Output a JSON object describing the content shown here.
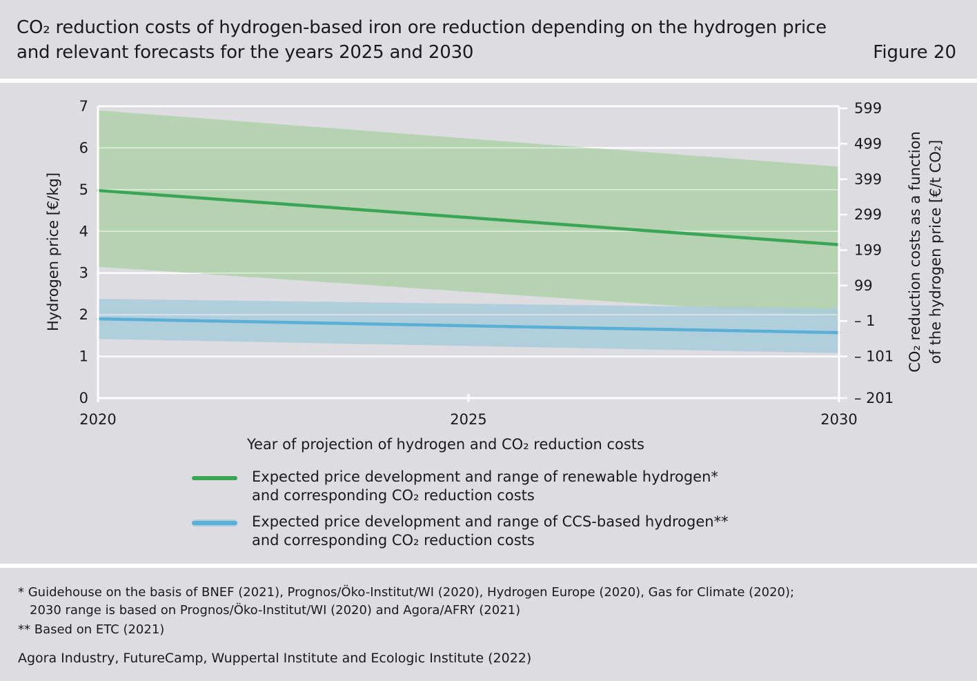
{
  "header": {
    "title_line1": "CO₂ reduction costs of hydrogen-based iron ore reduction depending on the hydrogen price",
    "title_line2": "and relevant forecasts for the years 2025 and 2030",
    "figure_label": "Figure 20"
  },
  "chart_data": {
    "type": "line",
    "x_ticks": [
      "2020",
      "2025",
      "2030"
    ],
    "xlabel": "Year of projection of hydrogen and CO₂ reduction costs",
    "ylabel": "Hydrogen price [€/kg]",
    "y2label_line1": "CO₂ reduction costs as a function",
    "y2label_line2": "of the hydrogen price [€/t CO₂]",
    "ylim": [
      0,
      7
    ],
    "y_ticks": [
      "0",
      "1",
      "2",
      "3",
      "4",
      "5",
      "6",
      "7"
    ],
    "y2_ticks": [
      "– 201",
      "– 101",
      "– 1",
      "99",
      "199",
      "299",
      "399",
      "499",
      "599"
    ],
    "y2_ticks_at_y": [
      0,
      1,
      1.85,
      2.7,
      3.55,
      4.4,
      5.25,
      6.1,
      6.95
    ],
    "series": [
      {
        "name": "Expected price development and range of renewable hydrogen* and corresponding CO₂ reduction costs",
        "color": "#3aa655",
        "band_color": "#aed0a8",
        "x": [
          2020,
          2030
        ],
        "values": [
          4.98,
          3.68
        ],
        "upper": [
          6.9,
          5.55
        ],
        "lower": [
          3.15,
          1.95
        ]
      },
      {
        "name": "Expected price development and range of CCS-based hydrogen** and corresponding CO₂ reduction costs",
        "color": "#5aafd6",
        "band_color": "#a9cbdb",
        "x": [
          2020,
          2030
        ],
        "values": [
          1.9,
          1.57
        ],
        "upper": [
          2.38,
          2.15
        ],
        "lower": [
          1.42,
          1.08
        ]
      }
    ]
  },
  "legend": {
    "items": [
      {
        "line1": "Expected price development and range of renewable hydrogen*",
        "line2": "and corresponding CO₂ reduction costs"
      },
      {
        "line1": "Expected price development and range of CCS-based hydrogen**",
        "line2": "and corresponding CO₂ reduction costs"
      }
    ]
  },
  "footer": {
    "footnote1_line1": "* Guidehouse on the basis of BNEF (2021), Prognos/Öko-Institut/WI (2020), Hydrogen Europe (2020), Gas for Climate (2020);",
    "footnote1_line2": "2030 range is based on Prognos/Öko-Institut/WI (2020) and Agora/AFRY (2021)",
    "footnote2": "** Based on ETC (2021)",
    "source": "Agora Industry, FutureCamp, Wuppertal Institute and Ecologic Institute (2022)"
  }
}
